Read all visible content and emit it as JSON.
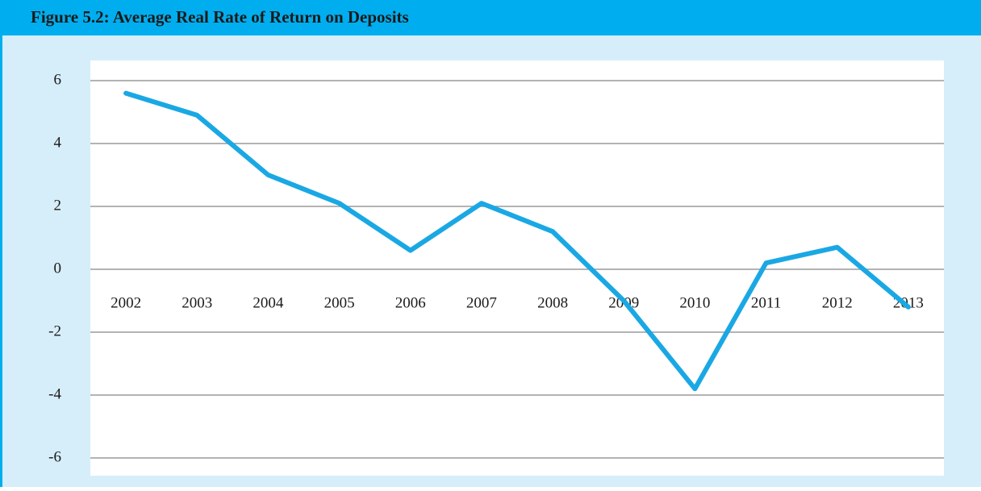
{
  "chart_data": {
    "type": "line",
    "title": "Figure 5.2: Average Real Rate of Return on Deposits",
    "categories": [
      "2002",
      "2003",
      "2004",
      "2005",
      "2006",
      "2007",
      "2008",
      "2009",
      "2010",
      "2011",
      "2012",
      "2013"
    ],
    "series": [
      {
        "color": "#1aa8e4",
        "values": [
          5.6,
          4.9,
          3.0,
          2.1,
          0.6,
          2.1,
          1.2,
          -1.0,
          -3.8,
          0.2,
          0.7,
          -1.2
        ]
      }
    ],
    "ylim": [
      -6,
      6
    ],
    "yticks": [
      -6,
      -4,
      -2,
      0,
      2,
      4,
      6
    ],
    "grid": true
  }
}
